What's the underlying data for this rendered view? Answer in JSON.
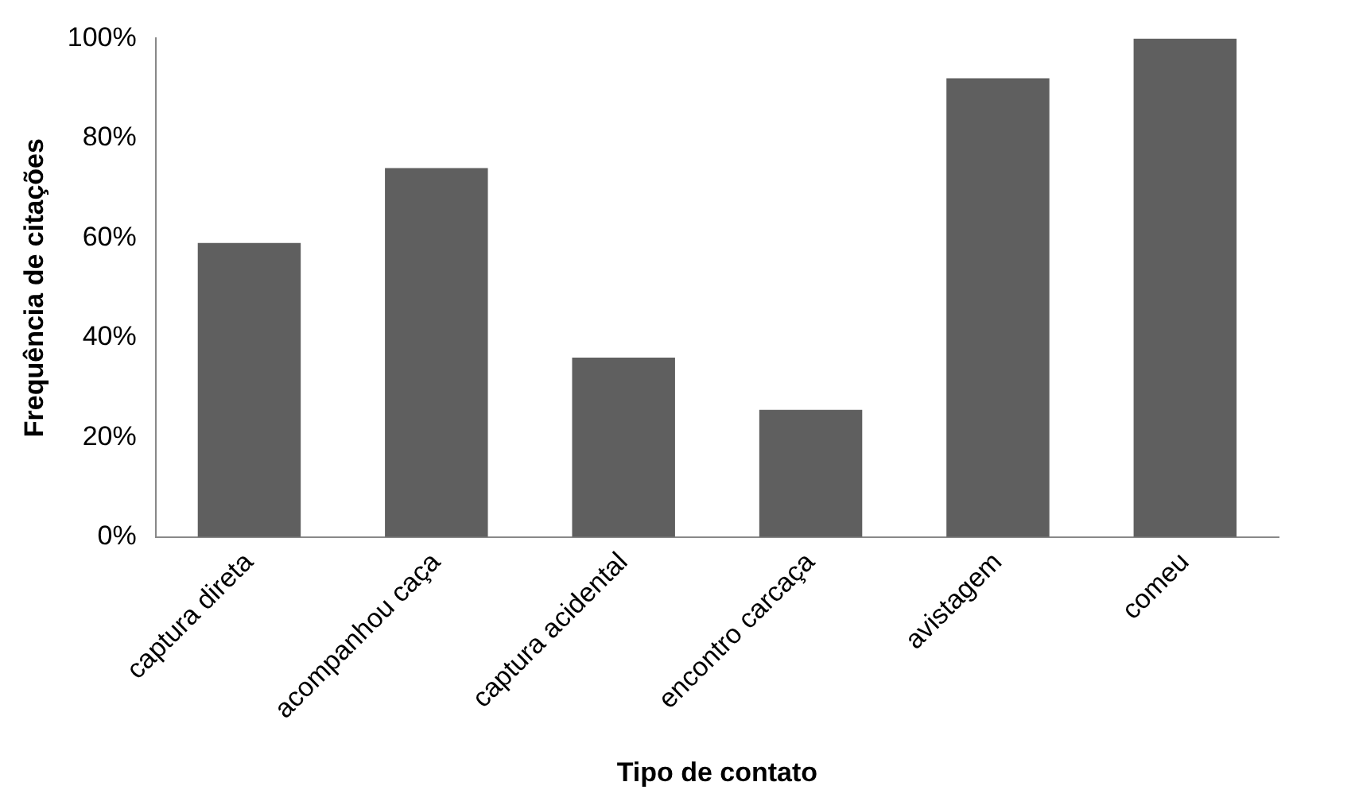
{
  "chart_data": {
    "type": "bar",
    "xlabel": "Tipo de contato",
    "ylabel": "Frequência de citações",
    "categories": [
      "captura direta",
      "acompanhou caça",
      "captura acidental",
      "encontro carcaça",
      "avistagem",
      "comeu"
    ],
    "values": [
      59,
      74,
      36,
      25.5,
      92,
      100
    ],
    "color": "#5f5f5f",
    "ylim": [
      0,
      100
    ],
    "yticks": [
      {
        "value": 0,
        "label": "0%"
      },
      {
        "value": 20,
        "label": "20%"
      },
      {
        "value": 40,
        "label": "40%"
      },
      {
        "value": 60,
        "label": "60%"
      },
      {
        "value": 80,
        "label": "80%"
      },
      {
        "value": 100,
        "label": "100%"
      }
    ],
    "grid": false,
    "legend": false
  }
}
